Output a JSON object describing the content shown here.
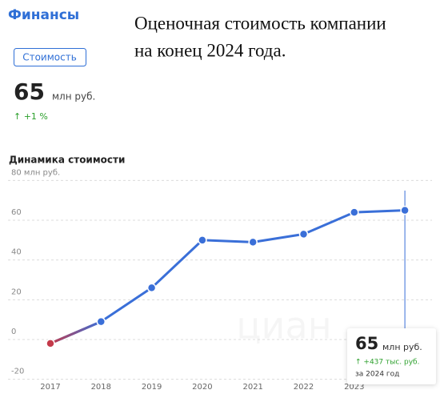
{
  "header": {
    "title": "Финансы",
    "heading": [
      "Оценочная стоимость компании",
      "на конец 2024 года."
    ]
  },
  "metric": {
    "tab": "Стоимость",
    "value": "65",
    "unit": "млн руб.",
    "change": "↑ +1 %"
  },
  "chart_data": {
    "type": "line",
    "title": "Динамика стоимости",
    "categories": [
      "2017",
      "2018",
      "2019",
      "2020",
      "2021",
      "2022",
      "2023",
      null
    ],
    "values": [
      -2,
      9,
      26,
      50,
      49,
      53,
      64,
      65
    ],
    "color": "#3a6fd8",
    "start_color": "#c43a4a",
    "ylim": [
      -25,
      85
    ],
    "yticks": [
      -20,
      0,
      20,
      40,
      60,
      {
        "value": 80,
        "label": "80 млн руб."
      }
    ],
    "grid": true,
    "highlight_index": 7
  },
  "tooltip": {
    "value": "65",
    "unit": "млн руб.",
    "change": "↑ +437 тыс. руб.",
    "period": "за 2024 год"
  },
  "watermark": "циан"
}
